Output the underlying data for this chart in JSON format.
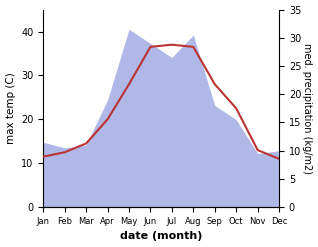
{
  "months": [
    "Jan",
    "Feb",
    "Mar",
    "Apr",
    "May",
    "Jun",
    "Jul",
    "Aug",
    "Sep",
    "Oct",
    "Nov",
    "Dec"
  ],
  "temp": [
    11.5,
    12.5,
    14.5,
    20.0,
    28.0,
    36.5,
    37.0,
    36.5,
    28.0,
    22.5,
    13.0,
    11.0
  ],
  "precip_raw": [
    11.5,
    10.5,
    11.0,
    19.0,
    31.5,
    29.0,
    26.5,
    30.5,
    18.0,
    15.5,
    9.5,
    10.0
  ],
  "temp_ylim": [
    0,
    45
  ],
  "precip_ylim": [
    0,
    35
  ],
  "temp_color": "#bb3333",
  "precip_color_fill": "#b0b8e8",
  "ylabel_left": "max temp (C)",
  "ylabel_right": "med. precipitation (kg/m2)",
  "xlabel": "date (month)",
  "left_yticks": [
    0,
    10,
    20,
    30,
    40
  ],
  "right_yticks": [
    0,
    5,
    10,
    15,
    20,
    25,
    30,
    35
  ]
}
